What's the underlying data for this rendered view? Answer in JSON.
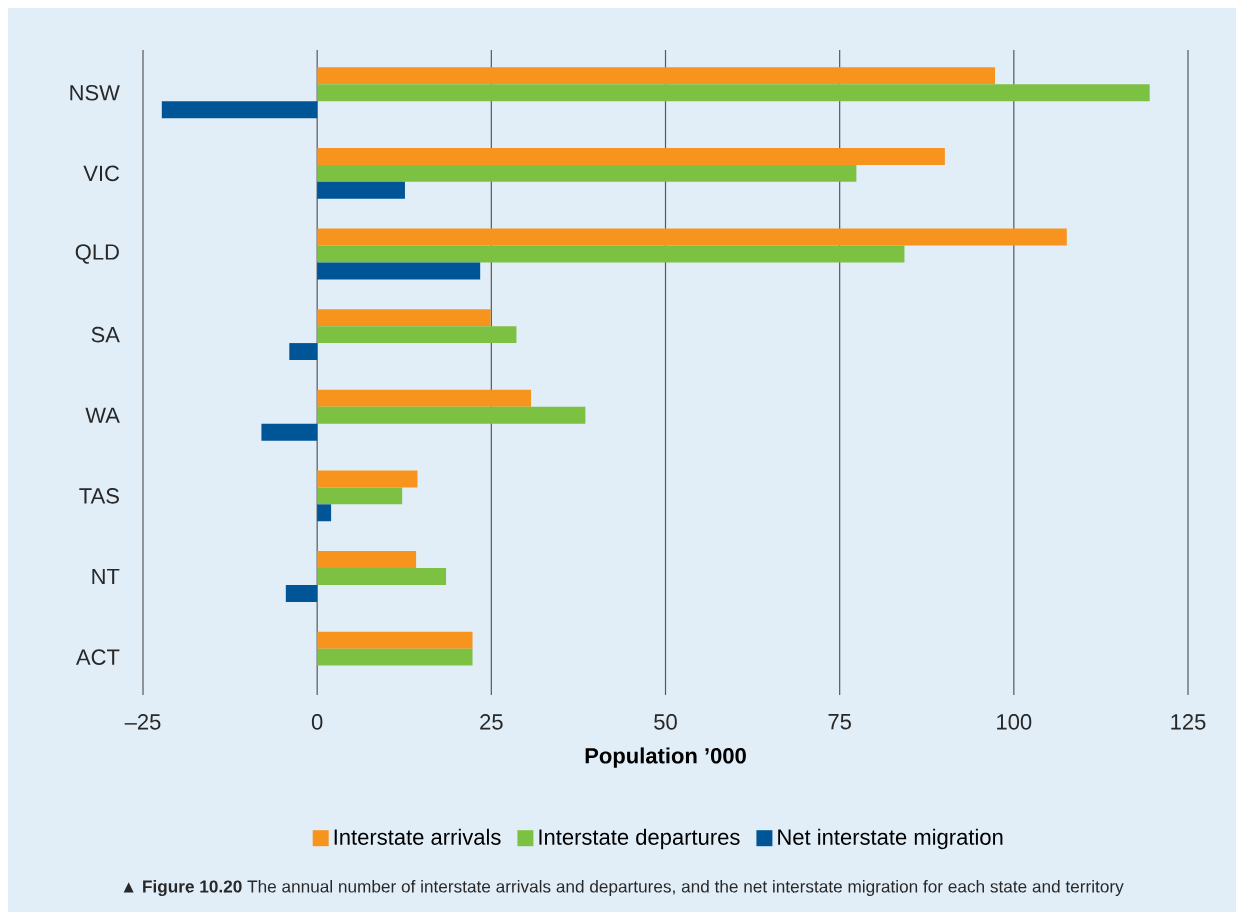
{
  "chart_data": {
    "type": "bar",
    "orientation": "horizontal",
    "xlabel": "Population ’000",
    "categories": [
      "NSW",
      "VIC",
      "QLD",
      "SA",
      "WA",
      "TAS",
      "NT",
      "ACT"
    ],
    "series": [
      {
        "name": "Interstate arrivals",
        "color": "#f7941d",
        "values": [
          97.3,
          90.1,
          107.6,
          24.9,
          30.7,
          14.4,
          14.2,
          22.3
        ]
      },
      {
        "name": "Interstate departures",
        "color": "#7dc142",
        "values": [
          119.5,
          77.4,
          84.3,
          28.6,
          38.5,
          12.2,
          18.5,
          22.3
        ]
      },
      {
        "name": "Net interstate migration",
        "color": "#005596",
        "values": [
          -22.3,
          12.6,
          23.4,
          -4.0,
          -8.0,
          2.0,
          -4.5,
          null
        ]
      }
    ],
    "xlim": [
      -25,
      125
    ],
    "xticks": [
      {
        "value": -25,
        "label": "–25"
      },
      0,
      25,
      50,
      75,
      100,
      125
    ],
    "grid": "x",
    "legend": "bottom",
    "annotations": [
      "▲ **Figure 10.20** The annual number of interstate arrivals and departures, and the net interstate migration for each state and territory"
    ]
  }
}
